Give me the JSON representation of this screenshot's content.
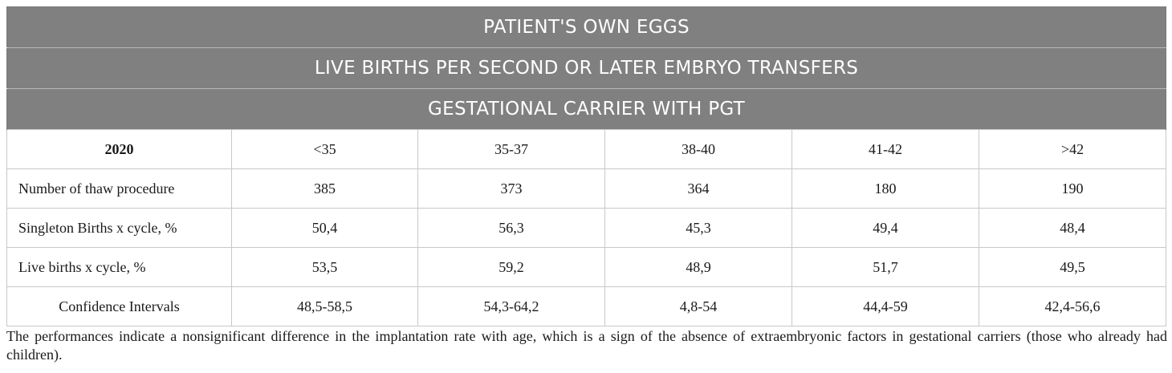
{
  "table": {
    "title_lines": [
      "PATIENT'S OWN EGGS",
      "LIVE BIRTHS PER SECOND OR LATER EMBRYO TRANSFERS",
      "GESTATIONAL CARRIER WITH PGT"
    ],
    "columns": [
      "2020",
      "<35",
      "35-37",
      "38-40",
      "41-42",
      ">42"
    ],
    "rows": [
      {
        "label": "Number of thaw procedure",
        "values": [
          "385",
          "373",
          "364",
          "180",
          "190"
        ]
      },
      {
        "label": "Singleton Births x cycle, %",
        "values": [
          "50,4",
          "56,3",
          "45,3",
          "49,4",
          "48,4"
        ]
      },
      {
        "label": "Live births x cycle, %",
        "values": [
          "53,5",
          "59,2",
          "48,9",
          "51,7",
          "49,5"
        ]
      },
      {
        "label": "Confidence Intervals",
        "values": [
          "48,5-58,5",
          "54,3-64,2",
          "4,8-54",
          "44,4-59",
          "42,4-56,6"
        ]
      }
    ]
  },
  "footnote": "The performances indicate a nonsignificant difference in the implantation rate with age, which is a sign of the absence of extraembryonic factors in gestational carriers (those who already had children)."
}
